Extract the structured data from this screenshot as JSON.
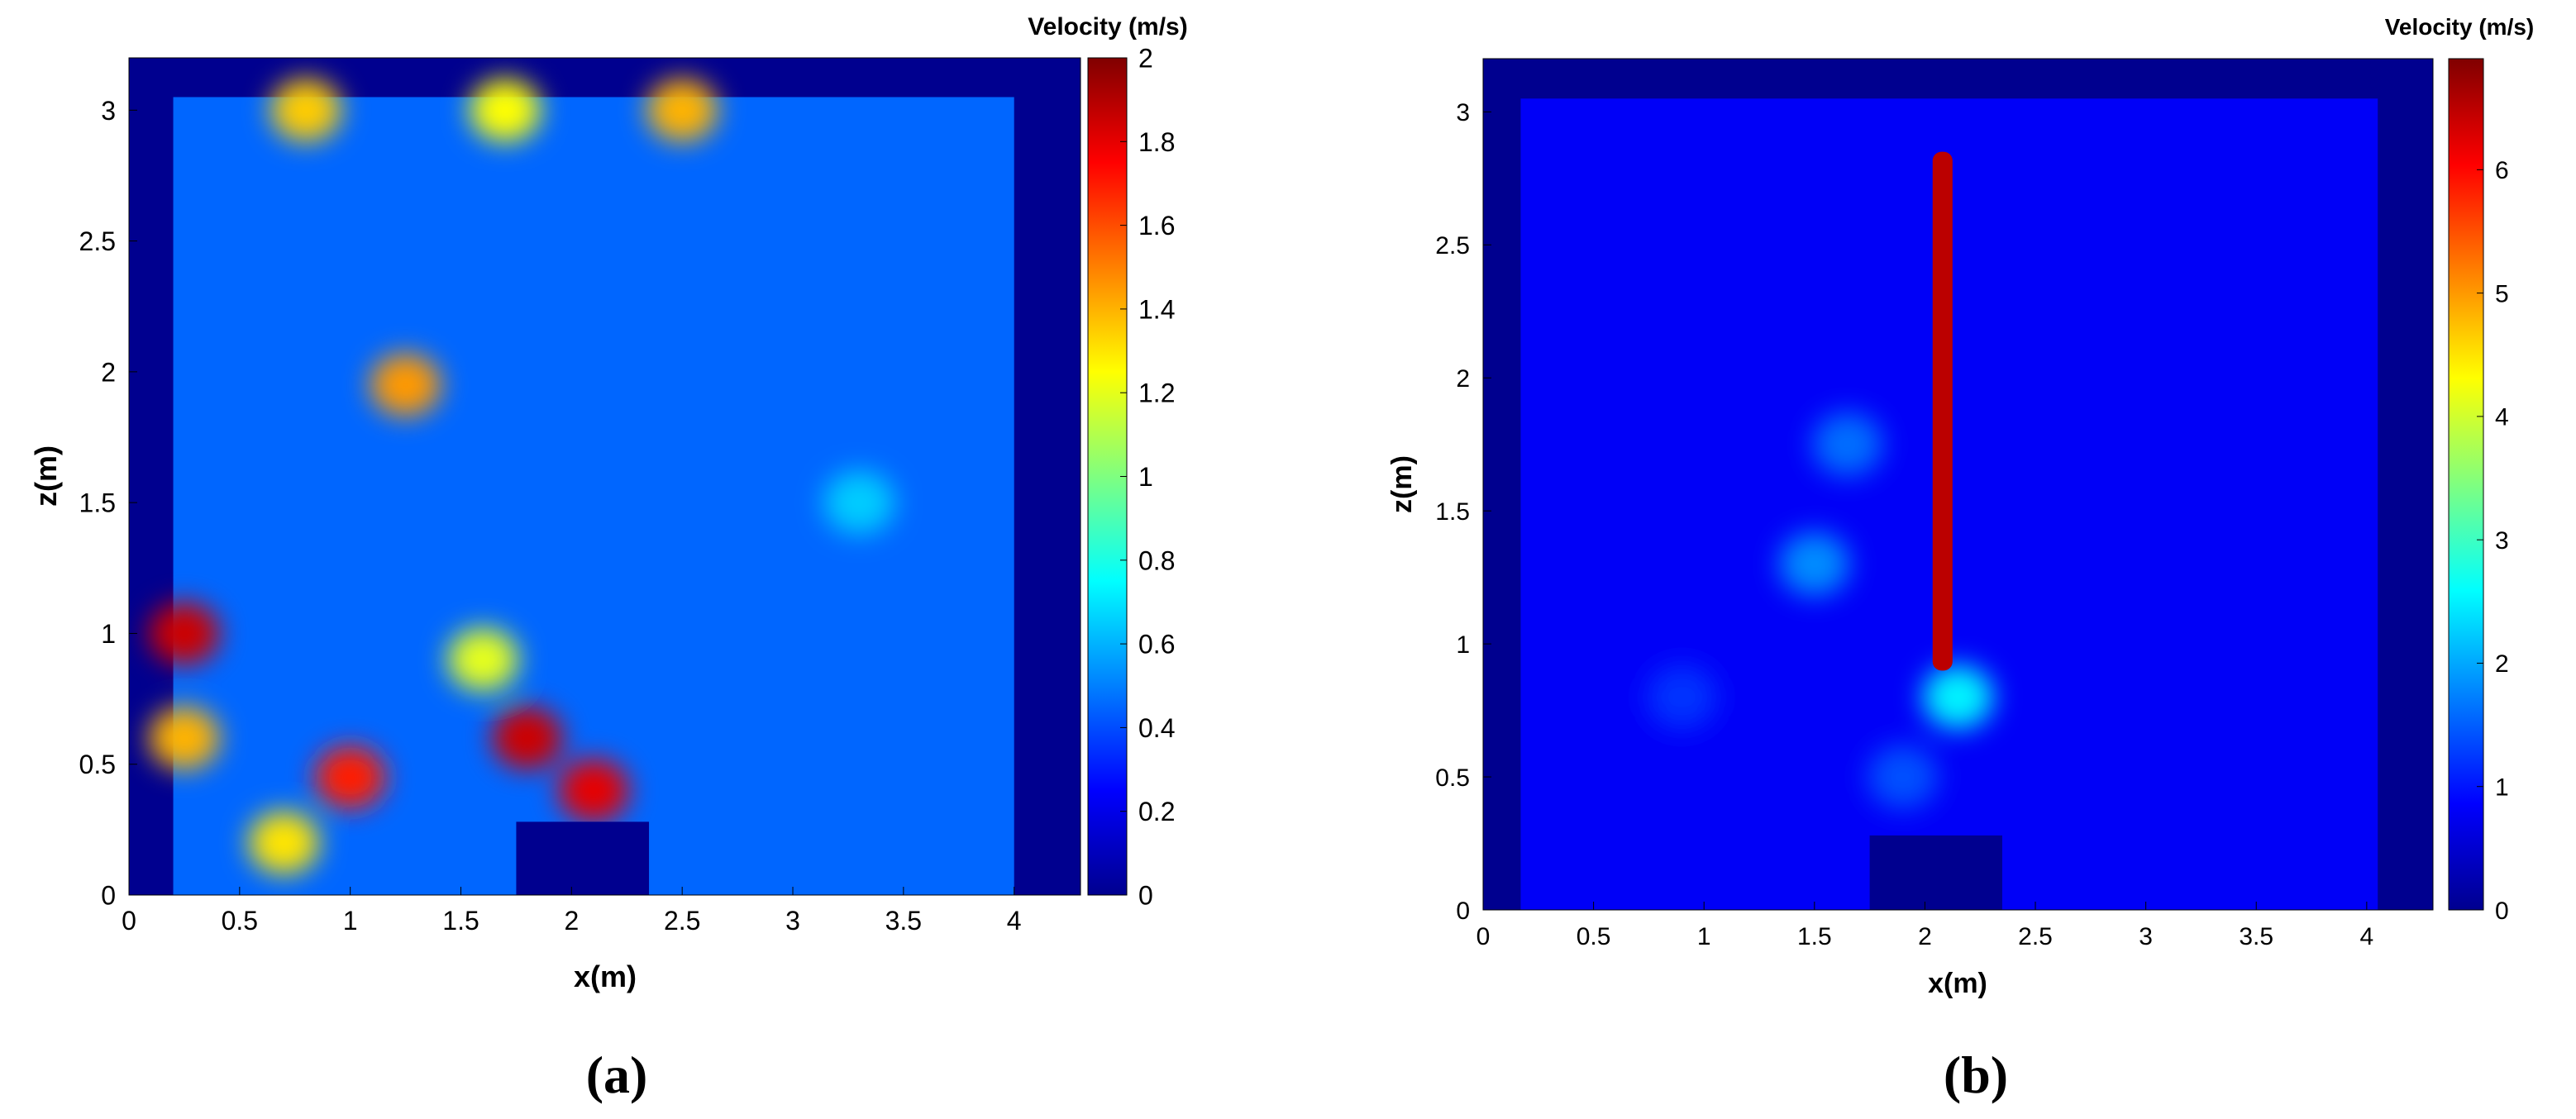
{
  "panels": [
    {
      "label": "(a)",
      "colorbar": {
        "title": "Velocity (m/s)",
        "ticks": [
          "2",
          "1.8",
          "1.6",
          "1.4",
          "1.2",
          "1",
          "0.8",
          "0.6",
          "0.4",
          "0.2",
          "0"
        ]
      }
    },
    {
      "label": "(b)",
      "colorbar": {
        "title": "Velocity (m/s)",
        "ticks": [
          "6",
          "5",
          "4",
          "3",
          "2",
          "1",
          "0"
        ]
      }
    }
  ],
  "colormap": "jet",
  "chart_data": [
    {
      "type": "heatmap",
      "title": "",
      "xlabel": "x(m)",
      "ylabel": "z(m)",
      "xlim": [
        0,
        4.3
      ],
      "ylim": [
        0,
        3.2
      ],
      "xticks": [
        "0",
        "0.5",
        "1",
        "1.5",
        "2",
        "2.5",
        "3",
        "3.5",
        "4"
      ],
      "yticks": [
        "0",
        "0.5",
        "1",
        "1.5",
        "2",
        "2.5",
        "3"
      ],
      "color_range": [
        0,
        2
      ],
      "colorbar_label": "Velocity (m/s)",
      "room_extent": {
        "x": [
          0.2,
          4.0
        ],
        "z": [
          0.0,
          3.05
        ]
      },
      "obstacle": {
        "x": [
          1.75,
          2.35
        ],
        "z": [
          0.0,
          0.28
        ]
      },
      "background_value": 0.45,
      "features": [
        {
          "x": 0.8,
          "z": 3.0,
          "value": 1.35
        },
        {
          "x": 1.7,
          "z": 3.0,
          "value": 1.25
        },
        {
          "x": 2.5,
          "z": 3.0,
          "value": 1.4
        },
        {
          "x": 0.25,
          "z": 1.0,
          "value": 1.85
        },
        {
          "x": 0.25,
          "z": 0.6,
          "value": 1.4
        },
        {
          "x": 1.25,
          "z": 1.95,
          "value": 1.45
        },
        {
          "x": 1.0,
          "z": 0.45,
          "value": 1.7
        },
        {
          "x": 0.7,
          "z": 0.2,
          "value": 1.3
        },
        {
          "x": 1.8,
          "z": 0.6,
          "value": 1.85
        },
        {
          "x": 2.1,
          "z": 0.4,
          "value": 1.8
        },
        {
          "x": 1.6,
          "z": 0.9,
          "value": 1.2
        },
        {
          "x": 3.3,
          "z": 1.5,
          "value": 0.65
        }
      ]
    },
    {
      "type": "heatmap",
      "title": "",
      "xlabel": "x(m)",
      "ylabel": "z(m)",
      "xlim": [
        0,
        4.3
      ],
      "ylim": [
        0,
        3.2
      ],
      "xticks": [
        "0",
        "0.5",
        "1",
        "1.5",
        "2",
        "2.5",
        "3",
        "3.5",
        "4"
      ],
      "yticks": [
        "0",
        "0.5",
        "1",
        "1.5",
        "2",
        "2.5",
        "3"
      ],
      "color_range": [
        0,
        6.9
      ],
      "colorbar_label": "Velocity (m/s)",
      "room_extent": {
        "x": [
          0.17,
          4.05
        ],
        "z": [
          0.0,
          3.05
        ]
      },
      "obstacle": {
        "x": [
          1.75,
          2.35
        ],
        "z": [
          0.0,
          0.28
        ]
      },
      "background_value": 0.8,
      "jet": {
        "x": 2.08,
        "z": [
          0.9,
          2.85
        ],
        "value": 6.5
      },
      "features": [
        {
          "x": 2.15,
          "z": 0.8,
          "value": 2.5
        },
        {
          "x": 1.5,
          "z": 1.3,
          "value": 1.8
        },
        {
          "x": 1.65,
          "z": 1.75,
          "value": 1.6
        },
        {
          "x": 1.9,
          "z": 0.5,
          "value": 1.4
        },
        {
          "x": 0.9,
          "z": 0.8,
          "value": 1.2
        }
      ]
    }
  ]
}
